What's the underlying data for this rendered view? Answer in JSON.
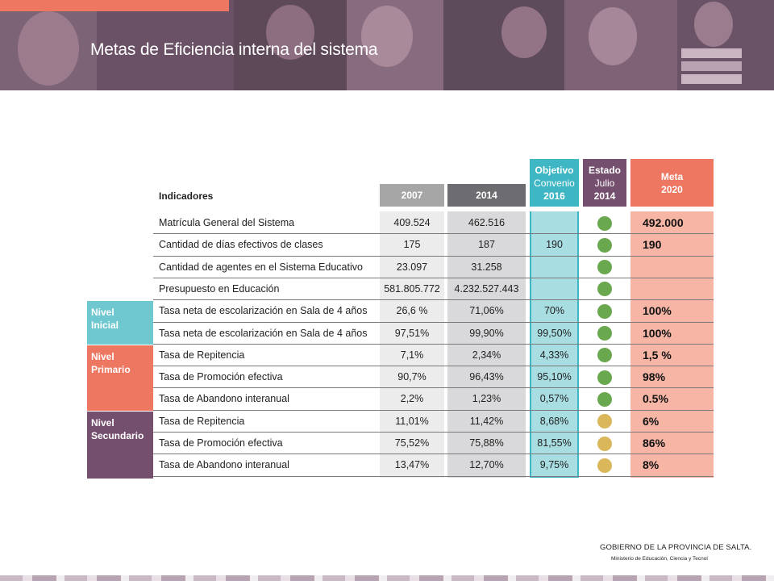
{
  "header": {
    "title": "Metas de Eficiencia interna del sistema"
  },
  "table": {
    "indicators_label": "Indicadores",
    "col_2007": "2007",
    "col_2014": "2014",
    "col_obj": [
      "Objetivo",
      "Convenio",
      "2016"
    ],
    "col_estado": [
      "Estado",
      "Julio",
      "2014"
    ],
    "col_meta": [
      "Meta",
      "2020"
    ],
    "levels": {
      "inicial": [
        "Nivel",
        "Inicial"
      ],
      "primario": [
        "Nivel",
        "Primario"
      ],
      "secundario": [
        "Nivel",
        "Secundario"
      ]
    },
    "rows": [
      {
        "ind": "Matrícula General del Sistema",
        "v2007": "409.524",
        "v2014": "462.516",
        "obj": "",
        "meta": "492.000",
        "status": "green"
      },
      {
        "ind": "Cantidad de días efectivos de clases",
        "v2007": "175",
        "v2014": "187",
        "obj": "190",
        "meta": "190",
        "status": "green"
      },
      {
        "ind": "Cantidad de agentes en el Sistema Educativo",
        "v2007": "23.097",
        "v2014": "31.258",
        "obj": "",
        "meta": "",
        "status": "green"
      },
      {
        "ind": "Presupuesto en Educación",
        "v2007": "581.805.772",
        "v2014": "4.232.527.443",
        "obj": "",
        "meta": "",
        "status": "green"
      },
      {
        "ind": "Tasa neta de escolarización en Sala de 4 años",
        "v2007": "26,6 %",
        "v2014": "71,06%",
        "obj": "70%",
        "meta": "100%",
        "status": "green"
      },
      {
        "ind": "Tasa neta de escolarización en Sala de 4 años",
        "v2007": "97,51%",
        "v2014": "99,90%",
        "obj": "99,50%",
        "meta": "100%",
        "status": "green"
      },
      {
        "ind": "Tasa de Repitencia",
        "v2007": "7,1%",
        "v2014": "2,34%",
        "obj": "4,33%",
        "meta": "1,5 %",
        "status": "green"
      },
      {
        "ind": "Tasa de Promoción efectiva",
        "v2007": "90,7%",
        "v2014": "96,43%",
        "obj": "95,10%",
        "meta": "98%",
        "status": "green"
      },
      {
        "ind": "Tasa de Abandono interanual",
        "v2007": "2,2%",
        "v2014": "1,23%",
        "obj": "0,57%",
        "meta": "0.5%",
        "status": "green"
      },
      {
        "ind": "Tasa de Repitencia",
        "v2007": "11,01%",
        "v2014": "11,42%",
        "obj": "8,68%",
        "meta": "6%",
        "status": "yellow"
      },
      {
        "ind": "Tasa de Promoción efectiva",
        "v2007": "75,52%",
        "v2014": "75,88%",
        "obj": "81,55%",
        "meta": "86%",
        "status": "yellow"
      },
      {
        "ind": "Tasa de Abandono interanual",
        "v2007": "13,47%",
        "v2014": "12,70%",
        "obj": "9,75%",
        "meta": "8%",
        "status": "yellow"
      }
    ]
  },
  "colors": {
    "green": "#6aa84f",
    "yellow": "#d9b75a"
  },
  "footer": {
    "line1": "GOBIERNO DE LA PROVINCIA DE SALTA.",
    "line2": "Ministerio de Educación, Ciencia y Tecnol"
  }
}
